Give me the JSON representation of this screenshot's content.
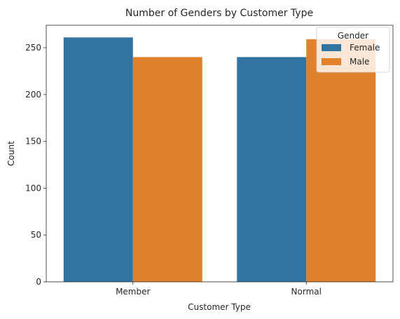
{
  "chart_data": {
    "type": "bar",
    "title": "Number of Genders by Customer Type",
    "xlabel": "Customer Type",
    "ylabel": "Count",
    "categories": [
      "Member",
      "Normal"
    ],
    "series": [
      {
        "name": "Female",
        "values": [
          261,
          240
        ],
        "color": "#3274a1"
      },
      {
        "name": "Male",
        "values": [
          240,
          259
        ],
        "color": "#e1812c"
      }
    ],
    "ylim": [
      0,
      274
    ],
    "yticks": [
      0,
      50,
      100,
      150,
      200,
      250
    ],
    "grid": false,
    "legend": {
      "title": "Gender",
      "placement": "top-right"
    }
  }
}
